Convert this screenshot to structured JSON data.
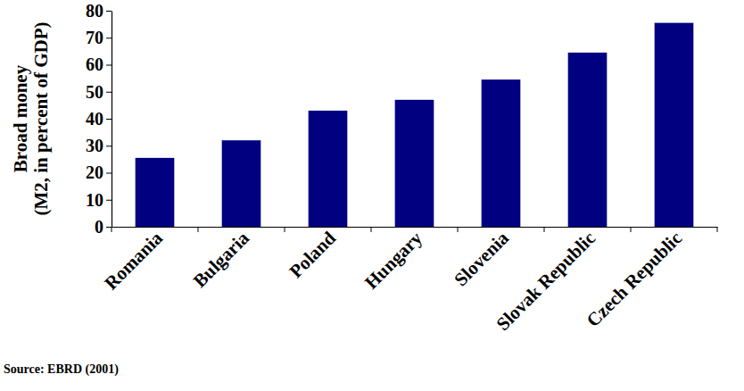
{
  "chart_data": {
    "type": "bar",
    "ylabel": [
      "Broad money",
      "(M2, in percent of GDP)"
    ],
    "categories": [
      "Romania",
      "Bulgaria",
      "Poland",
      "Hungary",
      "Slovenia",
      "Slovak Republic",
      "Czech Republic"
    ],
    "values": [
      25.5,
      32,
      43,
      47,
      54.5,
      64.5,
      75.5
    ],
    "color": "#000080",
    "ylim": [
      0,
      80
    ],
    "yticks": [
      0,
      10,
      20,
      30,
      40,
      50,
      60,
      70,
      80
    ],
    "grid": false,
    "source": "Source: EBRD (2001)"
  }
}
